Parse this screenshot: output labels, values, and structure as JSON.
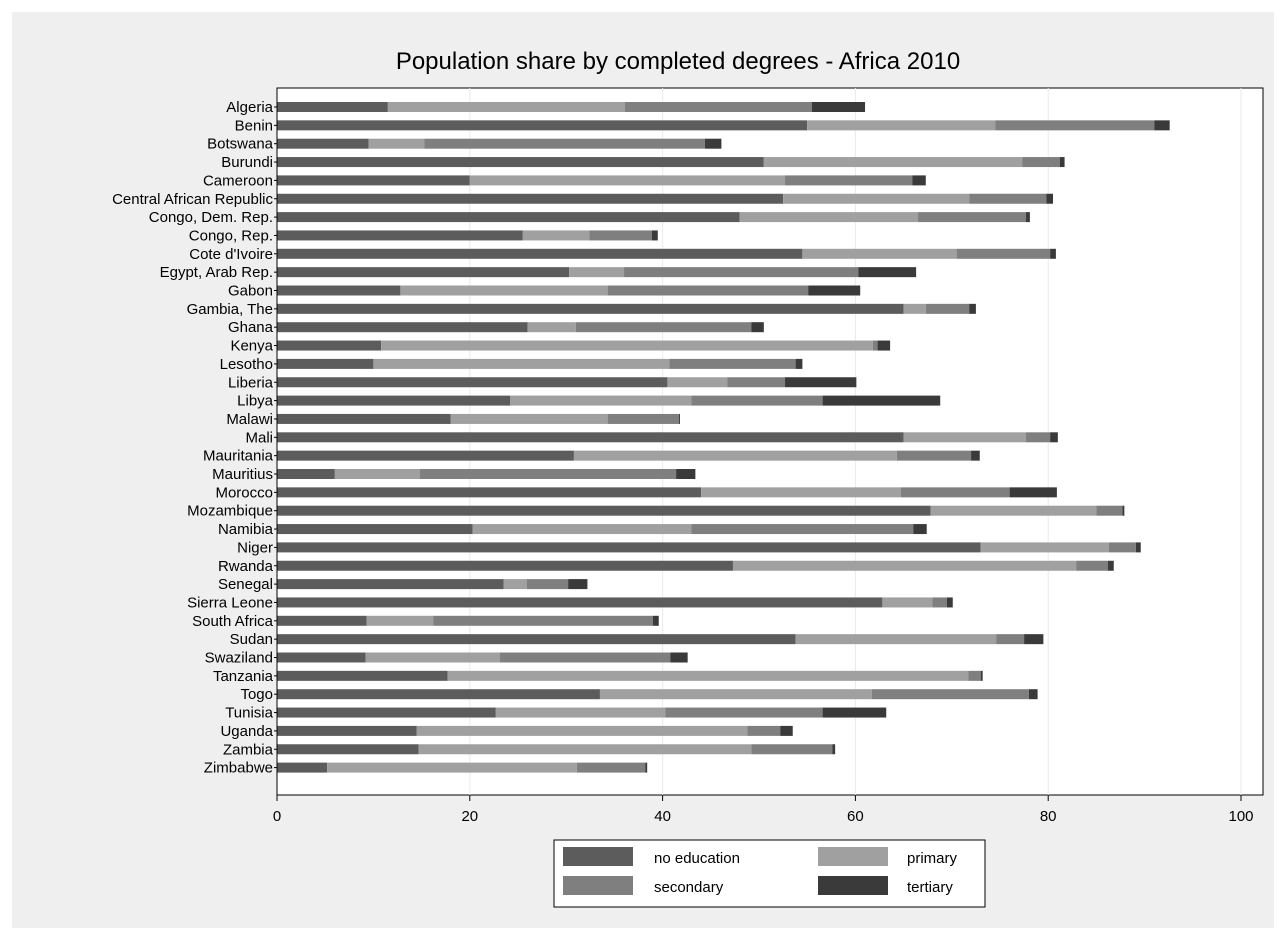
{
  "chart_data": {
    "type": "bar",
    "orientation": "horizontal",
    "stacked": true,
    "title": "Population share by completed  degrees - Africa 2010",
    "xlabel": "",
    "ylabel": "",
    "xlim": [
      0,
      100
    ],
    "xticks": [
      0,
      20,
      40,
      60,
      80,
      100
    ],
    "grid": true,
    "legend_position": "bottom",
    "categories": [
      "Algeria",
      "Benin",
      "Botswana",
      "Burundi",
      "Cameroon",
      "Central African Republic",
      "Congo, Dem. Rep.",
      "Congo, Rep.",
      "Cote d'Ivoire",
      "Egypt, Arab Rep.",
      "Gabon",
      "Gambia, The",
      "Ghana",
      "Kenya",
      "Lesotho",
      "Liberia",
      "Libya",
      "Malawi",
      "Mali",
      "Mauritania",
      "Mauritius",
      "Morocco",
      "Mozambique",
      "Namibia",
      "Niger",
      "Rwanda",
      "Senegal",
      "Sierra Leone",
      "South Africa",
      "Sudan",
      "Swaziland",
      "Tanzania",
      "Togo",
      "Tunisia",
      "Uganda",
      "Zambia",
      "Zimbabwe"
    ],
    "series": [
      {
        "name": "no education",
        "color": "#5c5c5c",
        "values": [
          11.5,
          55,
          9.5,
          50.5,
          20,
          52.5,
          48,
          25.5,
          54.5,
          30.3,
          12.8,
          65,
          26,
          10.8,
          10,
          40.5,
          24.2,
          18,
          65,
          30.8,
          6,
          44,
          67.8,
          20.3,
          73,
          47.3,
          23.5,
          62.8,
          9.3,
          53.8,
          9.2,
          17.7,
          33.5,
          22.7,
          14.5,
          14.7,
          5.2
        ]
      },
      {
        "name": "primary",
        "color": "#a0a0a0",
        "values": [
          24.6,
          19.5,
          5.8,
          26.8,
          32.7,
          19.3,
          18.5,
          6.9,
          16,
          5.7,
          21.5,
          2.3,
          5,
          51,
          30.7,
          6.2,
          18.8,
          16.3,
          12.7,
          33.5,
          8.8,
          20.7,
          17.2,
          22.7,
          13.3,
          35.6,
          2.4,
          5.2,
          6.9,
          20.8,
          13.9,
          54,
          28.2,
          17.6,
          34.3,
          34.5,
          25.9
        ]
      },
      {
        "name": "secondary",
        "color": "#7f7f7f",
        "values": [
          19.4,
          16.5,
          29.1,
          3.9,
          13.2,
          8,
          11.2,
          6.5,
          9.7,
          24.3,
          20.8,
          4.5,
          18.2,
          0.5,
          13.1,
          6,
          13.6,
          7.4,
          2.5,
          7.7,
          26.6,
          11.3,
          2.7,
          23,
          2.8,
          3.3,
          4.3,
          1.5,
          22.8,
          2.9,
          17.7,
          1.3,
          16.3,
          16.3,
          3.4,
          8.4,
          7.1
        ]
      },
      {
        "name": "tertiary",
        "color": "#3a3a3a",
        "values": [
          5.5,
          1.6,
          1.7,
          0.5,
          1.4,
          0.7,
          0.4,
          0.6,
          0.6,
          6,
          5.4,
          0.7,
          1.3,
          1.3,
          0.7,
          7.4,
          12.2,
          0.1,
          0.8,
          0.9,
          2,
          4.9,
          0.2,
          1.4,
          0.5,
          0.6,
          2,
          0.6,
          0.6,
          2,
          1.8,
          0.2,
          0.9,
          6.6,
          1.3,
          0.3,
          0.2
        ]
      }
    ]
  }
}
